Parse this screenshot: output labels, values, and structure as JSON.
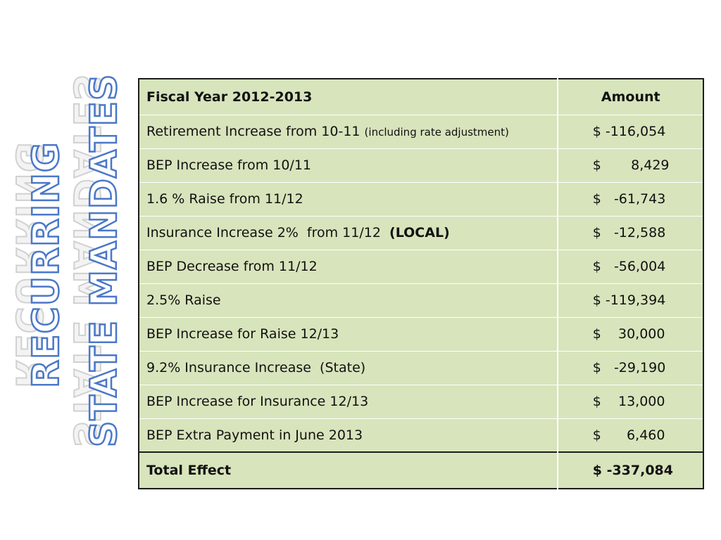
{
  "title": {
    "line1": "RECURRING",
    "line2": "STATE MANDATES"
  },
  "colors": {
    "table_fill": "#d8e4bc",
    "title_outline": "#4a78c8",
    "border": "#1c1c1c"
  },
  "table": {
    "header": {
      "description": "Fiscal Year 2012-2013",
      "amount": "Amount"
    },
    "rows": [
      {
        "description": "Retirement Increase from 10-11",
        "note": "(including rate adjustment)",
        "amount": "$ -116,054"
      },
      {
        "description": "BEP Increase from 10/11",
        "amount": "$       8,429"
      },
      {
        "description": "1.6 % Raise from 11/12",
        "amount": "$   -61,743"
      },
      {
        "description": "Insurance Increase 2%  from 11/12 ",
        "note_bold": "(LOCAL)",
        "amount": "$   -12,588"
      },
      {
        "description": "BEP Decrease from 11/12",
        "amount": "$   -56,004"
      },
      {
        "description": "2.5% Raise",
        "amount": "$ -119,394"
      },
      {
        "description": "BEP Increase for Raise 12/13",
        "amount": "$    30,000"
      },
      {
        "description": "9.2% Insurance Increase  (State)",
        "amount": "$   -29,190"
      },
      {
        "description": "BEP Increase for Insurance 12/13",
        "amount": "$    13,000"
      },
      {
        "description": "BEP Extra Payment in June 2013",
        "amount": "$      6,460"
      }
    ],
    "total": {
      "description": "Total Effect",
      "amount": "$ -337,084"
    }
  }
}
